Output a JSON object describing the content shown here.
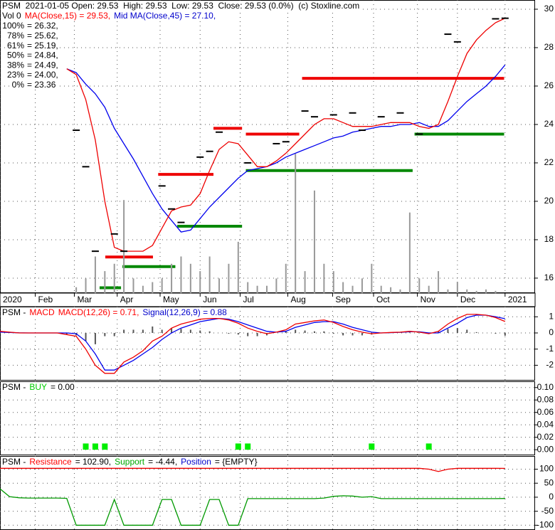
{
  "chart_data": [
    {
      "type": "line",
      "header_lines": [
        [
          {
            "text": "PSM  2021-01-05 Open: 29.53  High: 29.53  Low: 29.53  Close: 29.53 (0.0%)  (c) Stoxline.com",
            "color": "#000000"
          }
        ],
        [
          {
            "text": "Vol 0",
            "color": "#000000"
          },
          {
            "text": "MA(Close,15) = 29.53,",
            "color": "#ff0000"
          },
          {
            "text": "Mid MA(Close,45) = 27.10,",
            "color": "#0000cc"
          }
        ]
      ],
      "fib_levels": [
        {
          "label": "100%",
          "text": "= 26.32,",
          "color": "#ff0000"
        },
        {
          "label": "78%",
          "text": "= 25.62,",
          "color": "#cc00cc"
        },
        {
          "label": "61%",
          "text": "= 25.19,",
          "color": "#6699ff"
        },
        {
          "label": "50%",
          "text": "= 24.84,",
          "color": "#000099"
        },
        {
          "label": "38%",
          "text": "= 24.49,",
          "color": "#9999ee"
        },
        {
          "label": "23%",
          "text": "= 24.00,",
          "color": "#cc00cc"
        },
        {
          "label": "0%",
          "text": "= 23.36",
          "color": "#009900"
        }
      ],
      "x": [
        0,
        1,
        2,
        3,
        4,
        5,
        6,
        7,
        8,
        9,
        10,
        11,
        12,
        13,
        14,
        15,
        16,
        17,
        18,
        19,
        20,
        21,
        22,
        23,
        24,
        25,
        26,
        27,
        28,
        29,
        30,
        31,
        32,
        33,
        34,
        35,
        36,
        37,
        38,
        39,
        40,
        41,
        42,
        43,
        44,
        45,
        46,
        47,
        48,
        49,
        50,
        51,
        52,
        53
      ],
      "xlim": [
        0,
        56
      ],
      "xticks": [
        {
          "value": 0,
          "label": "2020"
        },
        {
          "value": 3.7,
          "label": "Feb"
        },
        {
          "value": 7.8,
          "label": "Mar"
        },
        {
          "value": 12.3,
          "label": "Apr"
        },
        {
          "value": 16.8,
          "label": "May"
        },
        {
          "value": 21,
          "label": "Jun"
        },
        {
          "value": 25.2,
          "label": "Jul"
        },
        {
          "value": 30.2,
          "label": "Aug"
        },
        {
          "value": 34.9,
          "label": "Sep"
        },
        {
          "value": 39.2,
          "label": "Oct"
        },
        {
          "value": 43.8,
          "label": "Nov"
        },
        {
          "value": 48,
          "label": "Dec"
        },
        {
          "value": 53,
          "label": "2021"
        }
      ],
      "ylim": [
        15.22,
        30.48
      ],
      "yticks": [
        16,
        18,
        20,
        22,
        24,
        26,
        28,
        30
      ],
      "vlim": [
        0,
        400
      ],
      "grid": true,
      "levels": [
        {
          "color": "#ee0000",
          "value": 17.1,
          "from": 11.05,
          "to": 16.05
        },
        {
          "color": "#ee0000",
          "value": 21.4,
          "from": 16.6,
          "to": 22.4
        },
        {
          "color": "#ee0000",
          "value": 23.8,
          "from": 22.4,
          "to": 25.4
        },
        {
          "color": "#ee0000",
          "value": 23.5,
          "from": 25.8,
          "to": 31.4
        },
        {
          "color": "#ee0000",
          "value": 26.4,
          "from": 31.7,
          "to": 52.9
        },
        {
          "color": "#008800",
          "value": 15.5,
          "from": 10.45,
          "to": 12.7
        },
        {
          "color": "#008800",
          "value": 16.6,
          "from": 12.85,
          "to": 18.4
        },
        {
          "color": "#008800",
          "value": 18.7,
          "from": 18.6,
          "to": 25.4
        },
        {
          "color": "#008800",
          "value": 21.6,
          "from": 25.8,
          "to": 43.3
        },
        {
          "color": "#008800",
          "value": 23.5,
          "from": 43.5,
          "to": 52.9
        }
      ],
      "series": [
        {
          "kind": "bar",
          "axis": "volume",
          "color": "#999999",
          "values": [
            0,
            0,
            0,
            0,
            0,
            0,
            0,
            0,
            8,
            20,
            50,
            30,
            40,
            127,
            20,
            10,
            15,
            20,
            40,
            50,
            40,
            30,
            50,
            20,
            40,
            70,
            15,
            10,
            10,
            20,
            40,
            190,
            30,
            140,
            40,
            30,
            15,
            10,
            20,
            40,
            10,
            8,
            5,
            110,
            20,
            10,
            30,
            5,
            15,
            5,
            3,
            5,
            3,
            0
          ]
        },
        {
          "kind": "line",
          "color": "#0000ee",
          "values": [
            null,
            null,
            null,
            null,
            null,
            null,
            null,
            26.9,
            26.7,
            26.1,
            25.6,
            24.9,
            23.8,
            23.0,
            22.2,
            21.3,
            20.4,
            19.6,
            19.0,
            18.4,
            18.5,
            19.1,
            19.7,
            20.2,
            20.7,
            21.2,
            21.6,
            21.7,
            21.8,
            22.0,
            22.3,
            22.5,
            22.7,
            22.9,
            23.1,
            23.3,
            23.4,
            23.6,
            23.7,
            23.8,
            23.9,
            23.9,
            24.0,
            24.0,
            24.1,
            23.9,
            23.9,
            24.2,
            24.7,
            25.2,
            25.6,
            26.0,
            26.5,
            27.1
          ]
        },
        {
          "kind": "line",
          "color": "#ee0000",
          "values": [
            null,
            null,
            null,
            null,
            null,
            null,
            null,
            26.9,
            26.6,
            25.3,
            23.2,
            20.0,
            17.6,
            17.4,
            17.4,
            17.4,
            17.7,
            18.6,
            19.5,
            19.7,
            19.8,
            20.4,
            21.6,
            22.7,
            23.1,
            23.0,
            22.4,
            21.8,
            21.8,
            22.1,
            22.5,
            23.0,
            23.5,
            24.0,
            24.3,
            24.3,
            24.1,
            23.9,
            23.9,
            23.9,
            24.0,
            24.1,
            24.1,
            24.1,
            23.9,
            23.8,
            24.0,
            25.2,
            26.5,
            27.7,
            28.4,
            28.9,
            29.3,
            29.53
          ]
        },
        {
          "kind": "tick",
          "color": "#000000",
          "values": [
            null,
            null,
            null,
            null,
            null,
            null,
            null,
            null,
            23.7,
            21.8,
            17.4,
            null,
            18.3,
            17.4,
            null,
            null,
            null,
            20.8,
            19.6,
            18.9,
            null,
            22.3,
            22.6,
            23.6,
            null,
            null,
            22.0,
            null,
            null,
            23.0,
            23.1,
            null,
            24.7,
            24.4,
            null,
            24.5,
            null,
            24.6,
            23.7,
            null,
            24.4,
            null,
            24.6,
            null,
            23.5,
            null,
            null,
            28.7,
            28.3,
            null,
            null,
            null,
            29.5,
            29.53
          ]
        }
      ]
    },
    {
      "type": "line",
      "header_lines": [
        [
          {
            "text": "PSM -",
            "color": "#000000"
          },
          {
            "text": "MACD",
            "color": "#ff0000"
          },
          {
            "text": "MACD(12,26) = 0.71,",
            "color": "#ff0000"
          },
          {
            "text": "Signal(12,26,9) = 0.88",
            "color": "#0000cc"
          }
        ]
      ],
      "x": [
        0,
        1,
        2,
        3,
        4,
        5,
        6,
        7,
        8,
        9,
        10,
        11,
        12,
        13,
        14,
        15,
        16,
        17,
        18,
        19,
        20,
        21,
        22,
        23,
        24,
        25,
        26,
        27,
        28,
        29,
        30,
        31,
        32,
        33,
        34,
        35,
        36,
        37,
        38,
        39,
        40,
        41,
        42,
        43,
        44,
        45,
        46,
        47,
        48,
        49,
        50,
        51,
        52,
        53
      ],
      "ylim": [
        -2.95,
        1.63
      ],
      "yticks": [
        1,
        0,
        -1,
        -2
      ],
      "grid": true,
      "series": [
        {
          "kind": "bar",
          "color": "#555555",
          "values": [
            0.05,
            0.02,
            -0.01,
            0,
            0,
            0,
            0,
            -0.1,
            -0.15,
            -0.5,
            -0.7,
            -0.2,
            -0.2,
            0.2,
            0.2,
            0.2,
            0.4,
            0.2,
            0.3,
            0.25,
            0.2,
            0.15,
            0.1,
            0,
            -0.05,
            -0.1,
            -0.2,
            -0.2,
            -0.15,
            0,
            0.1,
            0.2,
            0.15,
            0.1,
            0.1,
            -0.05,
            -0.15,
            -0.15,
            -0.15,
            -0.1,
            0,
            0.01,
            0.01,
            0.03,
            -0.02,
            -0.05,
            0.1,
            0.25,
            0.3,
            0.2,
            0.05,
            0,
            -0.05,
            -0.17
          ]
        },
        {
          "kind": "line",
          "color": "#0000ee",
          "values": [
            0.05,
            0.03,
            0.01,
            0,
            0,
            0,
            0,
            0,
            -0.05,
            -0.5,
            -1.3,
            -2.3,
            -2.3,
            -2.0,
            -1.7,
            -1.3,
            -0.9,
            -0.4,
            0,
            0.3,
            0.5,
            0.7,
            0.8,
            0.9,
            0.85,
            0.7,
            0.5,
            0.3,
            0.1,
            0.05,
            0.1,
            0.35,
            0.5,
            0.65,
            0.7,
            0.7,
            0.55,
            0.35,
            0.2,
            0.05,
            0,
            0.02,
            0.04,
            0.07,
            0.07,
            0,
            0,
            0.3,
            0.6,
            0.95,
            1.1,
            1.1,
            1.0,
            0.88
          ]
        },
        {
          "kind": "line",
          "color": "#ee0000",
          "values": [
            0.1,
            0.05,
            0,
            0,
            0,
            0,
            0,
            -0.1,
            -0.2,
            -1.0,
            -2.0,
            -2.5,
            -2.5,
            -1.8,
            -1.5,
            -1.1,
            -0.5,
            -0.2,
            0.3,
            0.55,
            0.7,
            0.85,
            0.9,
            0.9,
            0.8,
            0.6,
            0.3,
            0.1,
            -0.05,
            0.05,
            0.2,
            0.55,
            0.65,
            0.75,
            0.8,
            0.65,
            0.4,
            0.2,
            0.05,
            -0.05,
            0,
            0.03,
            0.05,
            0.1,
            0.05,
            -0.05,
            0.1,
            0.55,
            0.9,
            1.15,
            1.15,
            1.1,
            0.95,
            0.71
          ]
        }
      ]
    },
    {
      "type": "bar",
      "header_lines": [
        [
          {
            "text": "PSM -",
            "color": "#000000"
          },
          {
            "text": "BUY",
            "color": "#00cc00"
          },
          {
            "text": "= 0.00",
            "color": "#000000"
          }
        ]
      ],
      "x": [
        0,
        1,
        2,
        3,
        4,
        5,
        6,
        7,
        8,
        9,
        10,
        11,
        12,
        13,
        14,
        15,
        16,
        17,
        18,
        19,
        20,
        21,
        22,
        23,
        24,
        25,
        26,
        27,
        28,
        29,
        30,
        31,
        32,
        33,
        34,
        35,
        36,
        37,
        38,
        39,
        40,
        41,
        42,
        43,
        44,
        45,
        46,
        47,
        48,
        49,
        50,
        51,
        52,
        53
      ],
      "ylim": [
        -0.009,
        0.11
      ],
      "yticks": [
        {
          "value": 0.1,
          "label": "0.10"
        },
        {
          "value": 0.08,
          "label": "0.08"
        },
        {
          "value": 0.06,
          "label": "0.06"
        },
        {
          "value": 0.04,
          "label": "0.04"
        },
        {
          "value": 0.02,
          "label": "0.02"
        },
        {
          "value": 0,
          "label": "0.00"
        }
      ],
      "grid": true,
      "series": [
        {
          "kind": "bar",
          "color": "#00ee00",
          "values": [
            0,
            0,
            0,
            0,
            0,
            0,
            0,
            0,
            0,
            0.01,
            0.01,
            0.01,
            0,
            0,
            0,
            0,
            0,
            0,
            0,
            0,
            0,
            0,
            0,
            0,
            0,
            0.01,
            0.01,
            0,
            0,
            0,
            0,
            0,
            0,
            0,
            0,
            0,
            0,
            0,
            0,
            0.01,
            0,
            0,
            0,
            0,
            0,
            0.01,
            0,
            0,
            0,
            0,
            0,
            0,
            0,
            0
          ]
        }
      ]
    },
    {
      "type": "line",
      "header_lines": [
        [
          {
            "text": "PSM -",
            "color": "#000000"
          },
          {
            "text": "Resistance",
            "color": "#ff0000"
          },
          {
            "text": "= 102.90,",
            "color": "#000000"
          },
          {
            "text": "Support",
            "color": "#00aa00"
          },
          {
            "text": "= -4.44,",
            "color": "#000000"
          },
          {
            "text": "Position",
            "color": "#0000cc"
          },
          {
            "text": "= {EMPTY}",
            "color": "#000000"
          }
        ]
      ],
      "x": [
        0,
        1,
        2,
        3,
        4,
        5,
        6,
        7,
        8,
        9,
        10,
        11,
        12,
        13,
        14,
        15,
        16,
        17,
        18,
        19,
        20,
        21,
        22,
        23,
        24,
        25,
        26,
        27,
        28,
        29,
        30,
        31,
        32,
        33,
        34,
        35,
        36,
        37,
        38,
        39,
        40,
        41,
        42,
        43,
        44,
        45,
        46,
        47,
        48,
        49,
        50,
        51,
        52,
        53
      ],
      "ylim": [
        -117,
        147
      ],
      "yticks": [
        100,
        50,
        0,
        -50,
        -100
      ],
      "grid": true,
      "series": [
        {
          "kind": "line",
          "color": "#ee0000",
          "values": [
            103,
            103,
            103,
            103,
            103,
            103,
            103,
            103,
            103,
            103,
            103,
            103,
            103,
            103,
            103,
            103,
            103,
            103,
            103,
            103,
            103,
            103,
            103,
            103,
            103,
            103,
            103,
            103,
            103,
            103,
            103,
            103,
            103,
            103,
            103,
            103,
            103,
            103,
            103,
            103,
            103,
            103,
            103,
            103,
            103,
            100,
            92,
            100,
            103,
            103,
            103,
            103,
            103,
            102.9
          ]
        },
        {
          "kind": "line",
          "color": "#009900",
          "values": [
            30,
            2,
            -2,
            -3,
            -3,
            -3,
            -3,
            -4,
            -100,
            -100,
            -100,
            -100,
            -8,
            -100,
            -100,
            -100,
            -100,
            -8,
            -8,
            -100,
            -100,
            -100,
            -8,
            -8,
            -100,
            -100,
            -5,
            -5,
            -5,
            -5,
            -5,
            -5,
            -5,
            -5,
            -3,
            3,
            5,
            4,
            0,
            2,
            -5,
            -5,
            -5,
            -5,
            -5,
            -5,
            -5,
            -5,
            -5,
            -5,
            -5,
            -5,
            -5,
            -4.44
          ]
        }
      ]
    }
  ]
}
